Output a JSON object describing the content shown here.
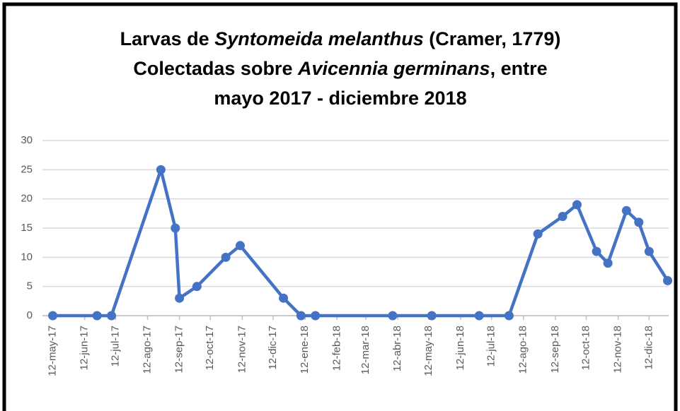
{
  "chart_data": {
    "type": "line",
    "title_parts": [
      [
        {
          "text": "Larvas de "
        },
        {
          "text": "Syntomeida melanthus",
          "italic": true
        },
        {
          "text": " (Cramer, 1779)"
        }
      ],
      [
        {
          "text": "Colectadas sobre "
        },
        {
          "text": "Avicennia germinans",
          "italic": true
        },
        {
          "text": ", entre"
        }
      ],
      [
        {
          "text": "mayo 2017 - diciembre 2018"
        }
      ]
    ],
    "x": [
      "2017-05-12",
      "2017-06-24",
      "2017-07-08",
      "2017-08-25",
      "2017-09-08",
      "2017-09-12",
      "2017-09-29",
      "2017-10-27",
      "2017-11-10",
      "2017-12-22",
      "2018-01-08",
      "2018-01-22",
      "2018-04-07",
      "2018-05-15",
      "2018-06-30",
      "2018-07-29",
      "2018-08-26",
      "2018-09-19",
      "2018-10-03",
      "2018-10-22",
      "2018-11-02",
      "2018-11-20",
      "2018-12-02",
      "2018-12-12",
      "2018-12-30"
    ],
    "series": [
      {
        "color": "#4472c4",
        "values": [
          0,
          0,
          0,
          25,
          15,
          3,
          5,
          10,
          12,
          3,
          0,
          0,
          0,
          0,
          0,
          0,
          14,
          17,
          19,
          11,
          9,
          18,
          16,
          11,
          6
        ]
      }
    ],
    "xlim": [
      "2017-05-02",
      "2018-12-31"
    ],
    "xticks": [
      {
        "value": "2017-05-12",
        "label": "12-may-17"
      },
      {
        "value": "2017-06-12",
        "label": "12-jun-17"
      },
      {
        "value": "2017-07-12",
        "label": "12-jul-17"
      },
      {
        "value": "2017-08-12",
        "label": "12-ago-17"
      },
      {
        "value": "2017-09-12",
        "label": "12-sep-17"
      },
      {
        "value": "2017-10-12",
        "label": "12-oct-17"
      },
      {
        "value": "2017-11-12",
        "label": "12-nov-17"
      },
      {
        "value": "2017-12-12",
        "label": "12-dic-17"
      },
      {
        "value": "2018-01-12",
        "label": "12-ene-18"
      },
      {
        "value": "2018-02-12",
        "label": "12-feb-18"
      },
      {
        "value": "2018-03-12",
        "label": "12-mar-18"
      },
      {
        "value": "2018-04-12",
        "label": "12-abr-18"
      },
      {
        "value": "2018-05-12",
        "label": "12-may-18"
      },
      {
        "value": "2018-06-12",
        "label": "12-jun-18"
      },
      {
        "value": "2018-07-12",
        "label": "12-jul-18"
      },
      {
        "value": "2018-08-12",
        "label": "12-ago-18"
      },
      {
        "value": "2018-09-12",
        "label": "12-sep-18"
      },
      {
        "value": "2018-10-12",
        "label": "12-oct-18"
      },
      {
        "value": "2018-11-12",
        "label": "12-nov-18"
      },
      {
        "value": "2018-12-12",
        "label": "12-dic-18"
      }
    ],
    "ylim": [
      0,
      30
    ],
    "yticks": [
      0,
      5,
      10,
      15,
      20,
      25,
      30
    ],
    "grid": true
  }
}
